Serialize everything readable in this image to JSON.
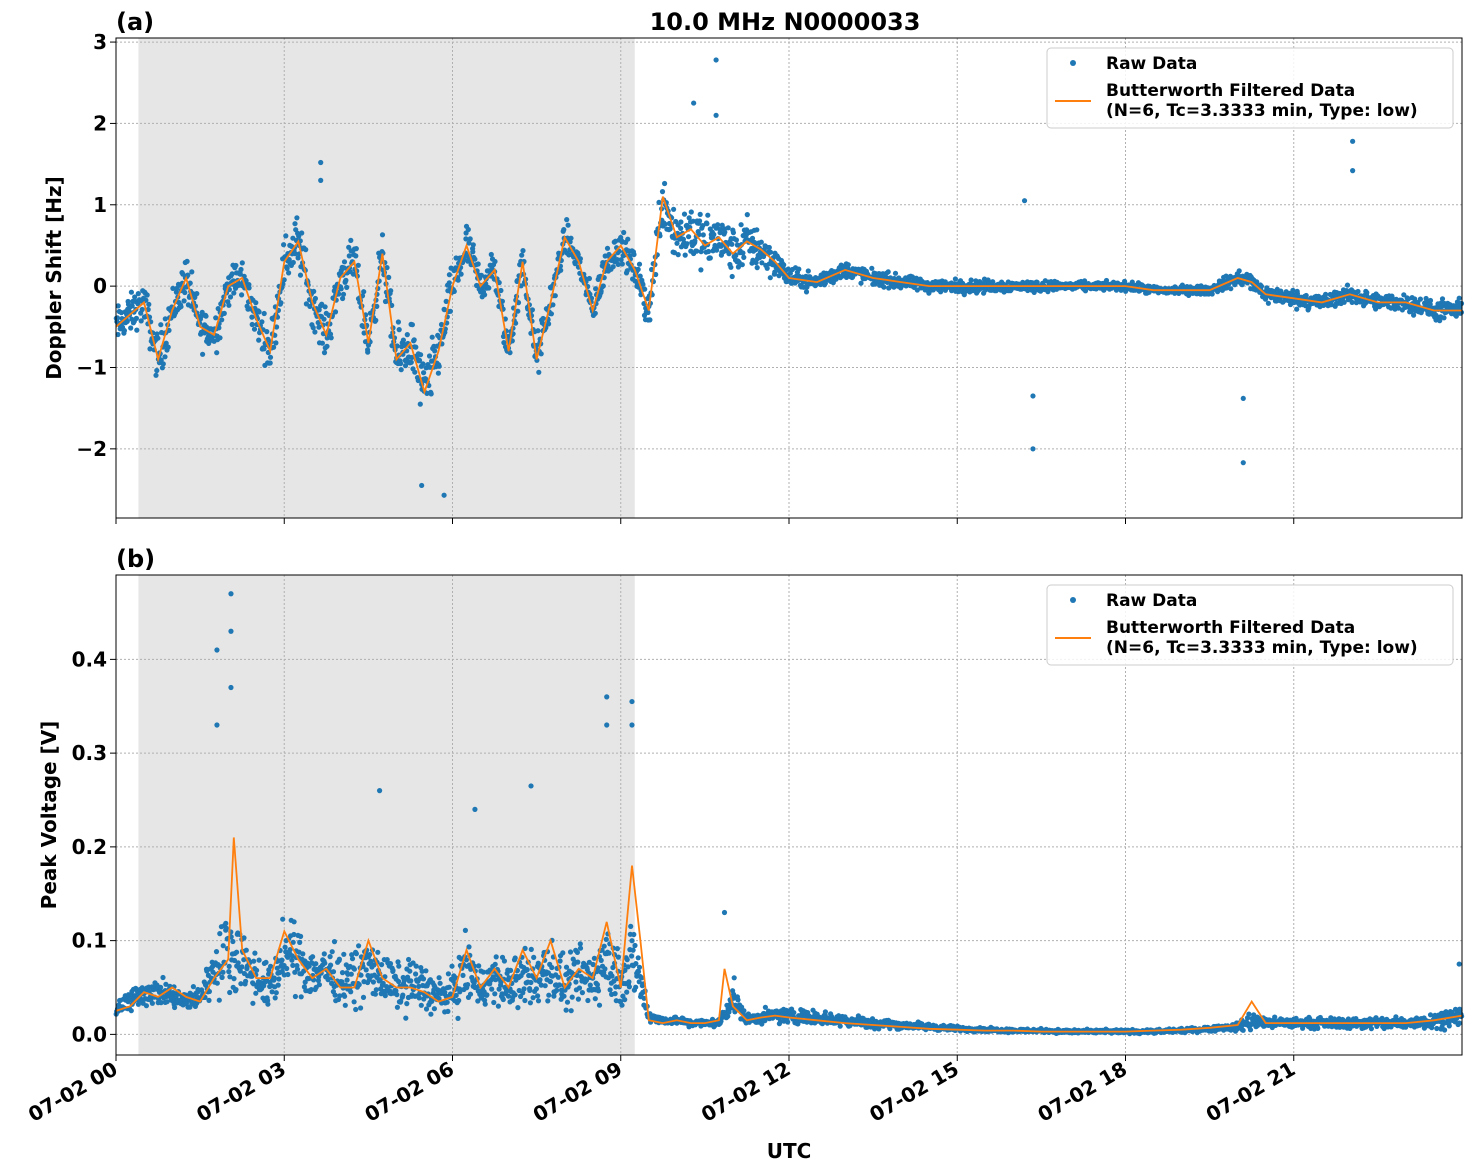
{
  "figure": {
    "title": "10.0 MHz N0000033",
    "xlabel": "UTC",
    "x_ticks": [
      "07-02 00",
      "07-02 03",
      "07-02 06",
      "07-02 09",
      "07-02 12",
      "07-02 15",
      "07-02 18",
      "07-02 21"
    ]
  },
  "colors": {
    "raw": "#1f77b4",
    "filtered": "#ff7f0e",
    "shade": "#e6e6e6",
    "grid": "#b0b0b0"
  },
  "chart_data": [
    {
      "type": "scatter",
      "panel_label": "(a)",
      "title": "10.0 MHz N0000033",
      "xlabel": "UTC",
      "ylabel": "Doppler Shift [Hz]",
      "x_unit": "hours UTC since 07-02 00:00",
      "xlim": [
        0,
        24
      ],
      "ylim": [
        -2.85,
        3.05
      ],
      "y_ticks": [
        3,
        2,
        1,
        0,
        -1,
        -2
      ],
      "y_tick_labels": [
        "3",
        "2",
        "1",
        "0",
        "−1",
        "−2"
      ],
      "grid": true,
      "legend": "top-right",
      "shaded_region": [
        0.4,
        9.25
      ],
      "series": [
        {
          "name": "Raw Data",
          "style": "points",
          "x": [
            0,
            0.25,
            0.5,
            0.75,
            1,
            1.25,
            1.5,
            1.75,
            2,
            2.25,
            2.5,
            2.75,
            3,
            3.25,
            3.5,
            3.75,
            4,
            4.25,
            4.5,
            4.75,
            5,
            5.25,
            5.5,
            5.75,
            6,
            6.25,
            6.5,
            6.75,
            7,
            7.25,
            7.5,
            7.75,
            8,
            8.25,
            8.5,
            8.75,
            9,
            9.25,
            9.5,
            9.75,
            10,
            10.25,
            10.5,
            10.75,
            11,
            11.25,
            11.5,
            11.75,
            12,
            12.5,
            13,
            13.5,
            14,
            14.5,
            15,
            15.5,
            16,
            16.5,
            17,
            17.5,
            18,
            18.5,
            19,
            19.5,
            20,
            20.25,
            20.5,
            21,
            21.5,
            22,
            22.5,
            23,
            23.5,
            24
          ],
          "center": [
            -0.5,
            -0.35,
            -0.2,
            -0.9,
            -0.3,
            0.1,
            -0.5,
            -0.6,
            0.0,
            0.1,
            -0.4,
            -0.8,
            0.3,
            0.55,
            -0.2,
            -0.6,
            0.1,
            0.3,
            -0.7,
            0.4,
            -0.9,
            -0.7,
            -1.3,
            -0.8,
            0.0,
            0.5,
            0.0,
            0.2,
            -0.8,
            0.3,
            -0.9,
            -0.2,
            0.6,
            0.3,
            -0.3,
            0.3,
            0.5,
            0.2,
            -0.3,
            1.1,
            0.6,
            0.7,
            0.5,
            0.6,
            0.4,
            0.55,
            0.45,
            0.3,
            0.1,
            0.05,
            0.2,
            0.1,
            0.05,
            0.0,
            0.0,
            0.0,
            0.0,
            0.0,
            0.0,
            0.0,
            0.0,
            -0.05,
            -0.05,
            -0.05,
            0.1,
            0.05,
            -0.1,
            -0.15,
            -0.2,
            -0.1,
            -0.2,
            -0.2,
            -0.3,
            -0.3
          ],
          "spread": [
            0.35,
            0.35,
            0.35,
            0.45,
            0.4,
            0.4,
            0.4,
            0.4,
            0.35,
            0.35,
            0.35,
            0.4,
            0.45,
            0.5,
            0.4,
            0.4,
            0.4,
            0.4,
            0.45,
            0.4,
            0.5,
            0.5,
            0.55,
            0.5,
            0.4,
            0.4,
            0.35,
            0.35,
            0.4,
            0.35,
            0.4,
            0.35,
            0.3,
            0.3,
            0.3,
            0.3,
            0.3,
            0.3,
            0.4,
            0.55,
            0.55,
            0.5,
            0.5,
            0.45,
            0.45,
            0.45,
            0.45,
            0.25,
            0.18,
            0.15,
            0.15,
            0.14,
            0.12,
            0.12,
            0.12,
            0.12,
            0.1,
            0.1,
            0.08,
            0.08,
            0.08,
            0.08,
            0.08,
            0.08,
            0.15,
            0.15,
            0.15,
            0.15,
            0.15,
            0.15,
            0.15,
            0.15,
            0.18,
            0.18
          ],
          "outliers": [
            [
              10.7,
              2.78
            ],
            [
              10.3,
              2.25
            ],
            [
              10.7,
              2.1
            ],
            [
              22.05,
              1.78
            ],
            [
              22.05,
              1.42
            ],
            [
              16.2,
              1.05
            ],
            [
              16.35,
              -1.35
            ],
            [
              16.35,
              -2.0
            ],
            [
              20.1,
              -1.38
            ],
            [
              20.1,
              -2.17
            ],
            [
              5.85,
              -2.57
            ],
            [
              5.45,
              -2.45
            ],
            [
              3.65,
              1.52
            ],
            [
              3.65,
              1.3
            ]
          ]
        },
        {
          "name": "Butterworth Filtered Data\n(N=6, Tc=3.3333 min, Type: low)",
          "style": "line",
          "x": [
            0,
            0.25,
            0.5,
            0.75,
            1,
            1.25,
            1.5,
            1.75,
            2,
            2.25,
            2.5,
            2.75,
            3,
            3.25,
            3.5,
            3.75,
            4,
            4.25,
            4.5,
            4.75,
            5,
            5.25,
            5.5,
            5.75,
            6,
            6.25,
            6.5,
            6.75,
            7,
            7.25,
            7.5,
            7.75,
            8,
            8.25,
            8.5,
            8.75,
            9,
            9.25,
            9.5,
            9.75,
            10,
            10.25,
            10.5,
            10.75,
            11,
            11.25,
            11.5,
            11.75,
            12,
            12.5,
            13,
            13.5,
            14,
            14.5,
            15,
            15.5,
            16,
            16.5,
            17,
            17.5,
            18,
            18.5,
            19,
            19.5,
            20,
            20.25,
            20.5,
            21,
            21.5,
            22,
            22.5,
            23,
            23.5,
            24
          ],
          "y": [
            -0.5,
            -0.35,
            -0.2,
            -0.9,
            -0.3,
            0.1,
            -0.5,
            -0.6,
            0.0,
            0.1,
            -0.4,
            -0.8,
            0.3,
            0.55,
            -0.2,
            -0.6,
            0.1,
            0.3,
            -0.7,
            0.4,
            -0.9,
            -0.7,
            -1.3,
            -0.8,
            0.0,
            0.5,
            0.0,
            0.2,
            -0.8,
            0.3,
            -0.9,
            -0.2,
            0.6,
            0.3,
            -0.3,
            0.3,
            0.5,
            0.2,
            -0.3,
            1.1,
            0.6,
            0.7,
            0.5,
            0.6,
            0.4,
            0.55,
            0.45,
            0.3,
            0.1,
            0.05,
            0.2,
            0.1,
            0.05,
            0.0,
            0.0,
            0.0,
            0.0,
            0.0,
            0.0,
            0.0,
            0.0,
            -0.05,
            -0.05,
            -0.05,
            0.1,
            0.05,
            -0.1,
            -0.15,
            -0.2,
            -0.1,
            -0.2,
            -0.2,
            -0.3,
            -0.3
          ]
        }
      ]
    },
    {
      "type": "scatter",
      "panel_label": "(b)",
      "xlabel": "UTC",
      "ylabel": "Peak Voltage [V]",
      "x_unit": "hours UTC since 07-02 00:00",
      "xlim": [
        0,
        24
      ],
      "ylim": [
        -0.022,
        0.49
      ],
      "y_ticks": [
        0.4,
        0.3,
        0.2,
        0.1,
        0.0
      ],
      "y_tick_labels": [
        "0.4",
        "0.3",
        "0.2",
        "0.1",
        "0.0"
      ],
      "grid": true,
      "legend": "top-right",
      "shaded_region": [
        0.4,
        9.25
      ],
      "series": [
        {
          "name": "Raw Data",
          "style": "points",
          "x": [
            0,
            0.25,
            0.5,
            0.75,
            1,
            1.25,
            1.5,
            1.75,
            2,
            2.25,
            2.5,
            2.75,
            3,
            3.25,
            3.5,
            3.75,
            4,
            4.25,
            4.5,
            4.75,
            5,
            5.25,
            5.5,
            5.75,
            6,
            6.25,
            6.5,
            6.75,
            7,
            7.25,
            7.5,
            7.75,
            8,
            8.25,
            8.5,
            8.75,
            9,
            9.25,
            9.5,
            9.75,
            10,
            10.25,
            10.5,
            10.75,
            11,
            11.25,
            11.5,
            11.75,
            12,
            12.5,
            13,
            13.5,
            14,
            14.5,
            15,
            15.5,
            16,
            16.5,
            17,
            17.5,
            18,
            18.5,
            19,
            19.5,
            20,
            20.25,
            20.5,
            21,
            21.5,
            22,
            22.5,
            23,
            23.5,
            24
          ],
          "center": [
            0.03,
            0.035,
            0.045,
            0.045,
            0.04,
            0.035,
            0.04,
            0.07,
            0.09,
            0.08,
            0.06,
            0.05,
            0.085,
            0.08,
            0.065,
            0.07,
            0.06,
            0.06,
            0.07,
            0.06,
            0.05,
            0.055,
            0.05,
            0.04,
            0.045,
            0.07,
            0.05,
            0.06,
            0.05,
            0.06,
            0.06,
            0.07,
            0.05,
            0.06,
            0.06,
            0.08,
            0.06,
            0.08,
            0.02,
            0.015,
            0.015,
            0.012,
            0.012,
            0.012,
            0.04,
            0.015,
            0.018,
            0.02,
            0.02,
            0.018,
            0.015,
            0.012,
            0.01,
            0.008,
            0.006,
            0.005,
            0.004,
            0.004,
            0.003,
            0.003,
            0.003,
            0.003,
            0.004,
            0.006,
            0.008,
            0.015,
            0.012,
            0.012,
            0.012,
            0.012,
            0.012,
            0.012,
            0.015,
            0.02
          ],
          "spread": [
            0.015,
            0.018,
            0.02,
            0.02,
            0.02,
            0.015,
            0.02,
            0.04,
            0.06,
            0.05,
            0.04,
            0.035,
            0.05,
            0.05,
            0.04,
            0.04,
            0.04,
            0.04,
            0.05,
            0.04,
            0.035,
            0.04,
            0.035,
            0.03,
            0.035,
            0.05,
            0.035,
            0.04,
            0.04,
            0.045,
            0.045,
            0.05,
            0.04,
            0.045,
            0.05,
            0.06,
            0.05,
            0.06,
            0.008,
            0.006,
            0.006,
            0.006,
            0.006,
            0.006,
            0.025,
            0.008,
            0.01,
            0.012,
            0.012,
            0.01,
            0.01,
            0.008,
            0.006,
            0.005,
            0.004,
            0.003,
            0.003,
            0.003,
            0.003,
            0.003,
            0.003,
            0.003,
            0.003,
            0.004,
            0.006,
            0.015,
            0.008,
            0.008,
            0.008,
            0.008,
            0.01,
            0.01,
            0.012,
            0.015
          ],
          "outliers": [
            [
              2.05,
              0.47
            ],
            [
              2.05,
              0.43
            ],
            [
              1.8,
              0.41
            ],
            [
              2.05,
              0.37
            ],
            [
              1.8,
              0.33
            ],
            [
              8.75,
              0.36
            ],
            [
              8.75,
              0.33
            ],
            [
              9.2,
              0.355
            ],
            [
              9.2,
              0.33
            ],
            [
              4.7,
              0.26
            ],
            [
              6.4,
              0.24
            ],
            [
              7.4,
              0.265
            ],
            [
              10.85,
              0.13
            ],
            [
              23.95,
              0.075
            ]
          ]
        },
        {
          "name": "Butterworth Filtered Data\n(N=6, Tc=3.3333 min, Type: low)",
          "style": "line",
          "x": [
            0,
            0.25,
            0.5,
            0.75,
            1,
            1.25,
            1.5,
            1.75,
            2,
            2.1,
            2.25,
            2.5,
            2.75,
            3,
            3.25,
            3.5,
            3.75,
            4,
            4.25,
            4.5,
            4.75,
            5,
            5.25,
            5.5,
            5.75,
            6,
            6.25,
            6.5,
            6.75,
            7,
            7.25,
            7.5,
            7.75,
            8,
            8.25,
            8.5,
            8.75,
            9,
            9.2,
            9.35,
            9.5,
            9.75,
            10,
            10.25,
            10.5,
            10.75,
            10.85,
            11,
            11.25,
            11.5,
            11.75,
            12,
            12.5,
            13,
            13.5,
            14,
            14.5,
            15,
            15.5,
            16,
            16.5,
            17,
            17.5,
            18,
            18.5,
            19,
            19.5,
            20,
            20.25,
            20.5,
            21,
            21.5,
            22,
            22.5,
            23,
            23.5,
            24
          ],
          "y": [
            0.025,
            0.03,
            0.045,
            0.04,
            0.05,
            0.04,
            0.035,
            0.06,
            0.08,
            0.21,
            0.09,
            0.06,
            0.06,
            0.11,
            0.08,
            0.06,
            0.07,
            0.05,
            0.05,
            0.1,
            0.06,
            0.05,
            0.05,
            0.045,
            0.035,
            0.04,
            0.09,
            0.05,
            0.07,
            0.05,
            0.09,
            0.06,
            0.1,
            0.05,
            0.07,
            0.06,
            0.12,
            0.05,
            0.18,
            0.1,
            0.015,
            0.012,
            0.015,
            0.012,
            0.012,
            0.015,
            0.07,
            0.03,
            0.015,
            0.018,
            0.02,
            0.018,
            0.015,
            0.012,
            0.01,
            0.008,
            0.006,
            0.005,
            0.004,
            0.004,
            0.003,
            0.003,
            0.003,
            0.003,
            0.004,
            0.005,
            0.007,
            0.01,
            0.035,
            0.012,
            0.012,
            0.012,
            0.012,
            0.012,
            0.012,
            0.015,
            0.02
          ]
        }
      ]
    }
  ]
}
